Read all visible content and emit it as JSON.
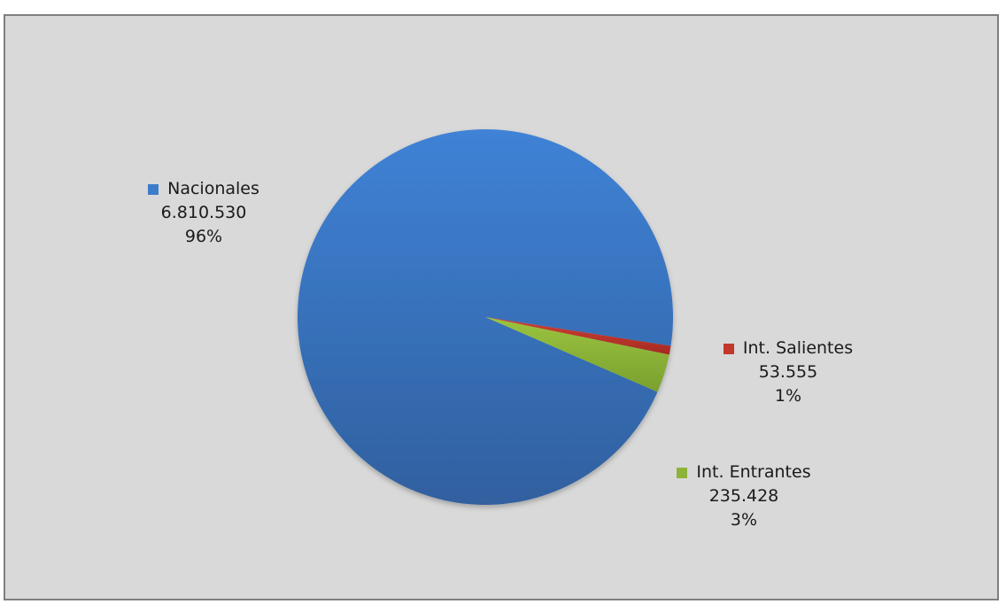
{
  "chart_data": {
    "type": "pie",
    "title": "",
    "slices": [
      {
        "name": "Nacionales",
        "value": 6810530,
        "value_label": "6.810.530",
        "percent_label": "96%",
        "color": "#3d7cc9"
      },
      {
        "name": "Int. Salientes",
        "value": 53555,
        "value_label": "53.555",
        "percent_label": "1%",
        "color": "#c0392b"
      },
      {
        "name": "Int. Entrantes",
        "value": 235428,
        "value_label": "235.428",
        "percent_label": "3%",
        "color": "#8db33a"
      }
    ],
    "legend": "none",
    "labels": "outside"
  }
}
